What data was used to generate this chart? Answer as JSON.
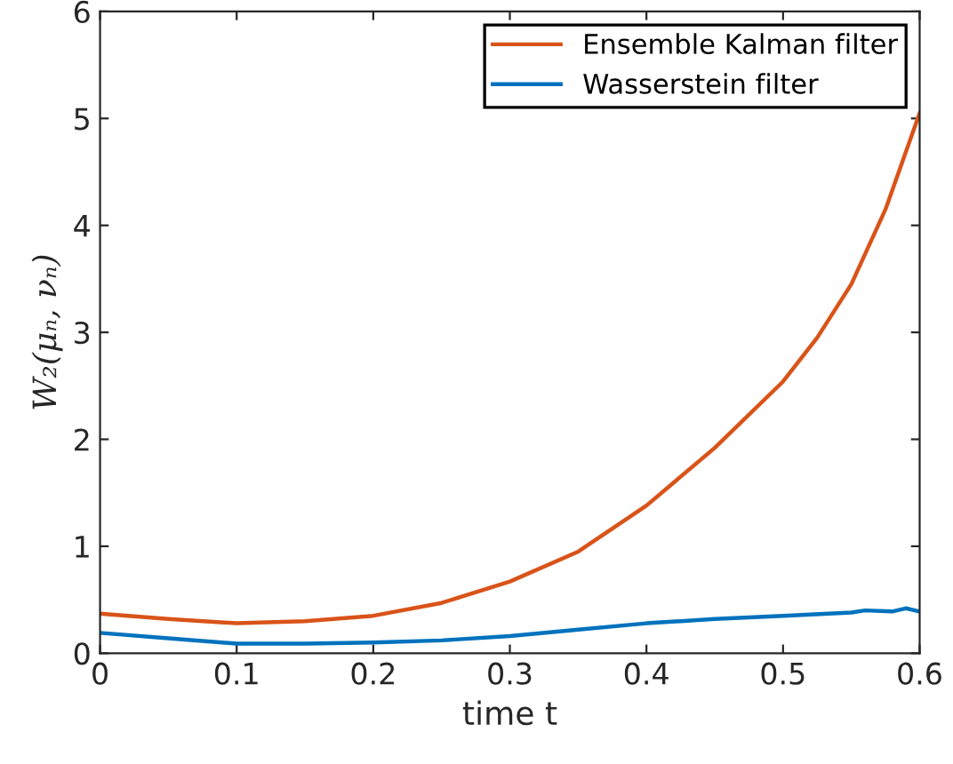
{
  "chart_data": {
    "type": "line",
    "xlabel": "time t",
    "ylabel": "W₂(μₙ, νₙ)",
    "xlim": [
      0,
      0.6
    ],
    "ylim": [
      0,
      6
    ],
    "xticks": [
      0,
      0.1,
      0.2,
      0.3,
      0.4,
      0.5,
      0.6
    ],
    "yticks": [
      0,
      1,
      2,
      3,
      4,
      5,
      6
    ],
    "grid": false,
    "legend": "top right",
    "marker": "none",
    "line_style": "solid",
    "series": [
      {
        "name": "Ensemble Kalman filter",
        "color": "#d95319",
        "x": [
          0,
          0.05,
          0.1,
          0.15,
          0.2,
          0.25,
          0.3,
          0.35,
          0.4,
          0.45,
          0.5,
          0.525,
          0.55,
          0.575,
          0.6
        ],
        "values": [
          0.37,
          0.32,
          0.28,
          0.3,
          0.35,
          0.47,
          0.67,
          0.95,
          1.38,
          1.92,
          2.54,
          2.95,
          3.45,
          4.15,
          5.05
        ]
      },
      {
        "name": "Wasserstein filter",
        "color": "#0072bd",
        "x": [
          0,
          0.05,
          0.1,
          0.15,
          0.2,
          0.25,
          0.3,
          0.35,
          0.4,
          0.45,
          0.5,
          0.55,
          0.56,
          0.58,
          0.59,
          0.6
        ],
        "values": [
          0.19,
          0.14,
          0.09,
          0.09,
          0.1,
          0.12,
          0.16,
          0.22,
          0.28,
          0.32,
          0.35,
          0.38,
          0.4,
          0.39,
          0.42,
          0.39
        ]
      }
    ]
  }
}
